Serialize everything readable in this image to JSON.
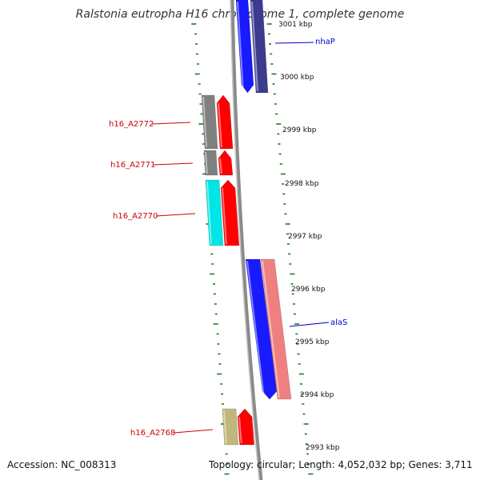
{
  "title": "Ralstonia eutropha H16 chromosome 1, complete genome",
  "footer": {
    "accession": "Accession: NC_008313",
    "topology": "Topology: circular; Length: 4,052,032 bp; Genes: 3,711"
  },
  "colors": {
    "backbone": "#8a8a8a",
    "tick_marks": "#1f7a1f",
    "label_left": "#cc0000",
    "label_right": "#0000cc"
  },
  "chart_data": {
    "type": "genome-map-segment",
    "tick_labels": [
      "3001 kbp",
      "3000 kbp",
      "2999 kbp",
      "2998 kbp",
      "2997 kbp",
      "2996 kbp",
      "2995 kbp",
      "2994 kbp",
      "2993 kbp"
    ],
    "gene_labels": [
      {
        "name": "nhaP",
        "side": "right",
        "color": "#0000cc"
      },
      {
        "name": "h16_A2772",
        "side": "left",
        "color": "#cc0000"
      },
      {
        "name": "h16_A2771",
        "side": "left",
        "color": "#cc0000"
      },
      {
        "name": "h16_A2770",
        "side": "left",
        "color": "#cc0000"
      },
      {
        "name": "alaS",
        "side": "right",
        "color": "#0000cc"
      },
      {
        "name": "h16_A2768",
        "side": "left",
        "color": "#cc0000"
      }
    ],
    "features": [
      {
        "track": "outer",
        "color": "#3b3b8f"
      },
      {
        "track": "inner",
        "color": "#1a1aff"
      },
      {
        "track": "outer",
        "color": "#808080"
      },
      {
        "track": "inner",
        "color": "#ff0000"
      },
      {
        "track": "outer",
        "color": "#808080"
      },
      {
        "track": "inner",
        "color": "#ff0000"
      },
      {
        "track": "outer",
        "color": "#00e5e5"
      },
      {
        "track": "inner",
        "color": "#ff0000"
      },
      {
        "track": "inner",
        "color": "#1a1aff"
      },
      {
        "track": "outer",
        "color": "#f08080"
      },
      {
        "track": "outer",
        "color": "#c2b77a"
      },
      {
        "track": "inner",
        "color": "#ff0000"
      }
    ]
  }
}
